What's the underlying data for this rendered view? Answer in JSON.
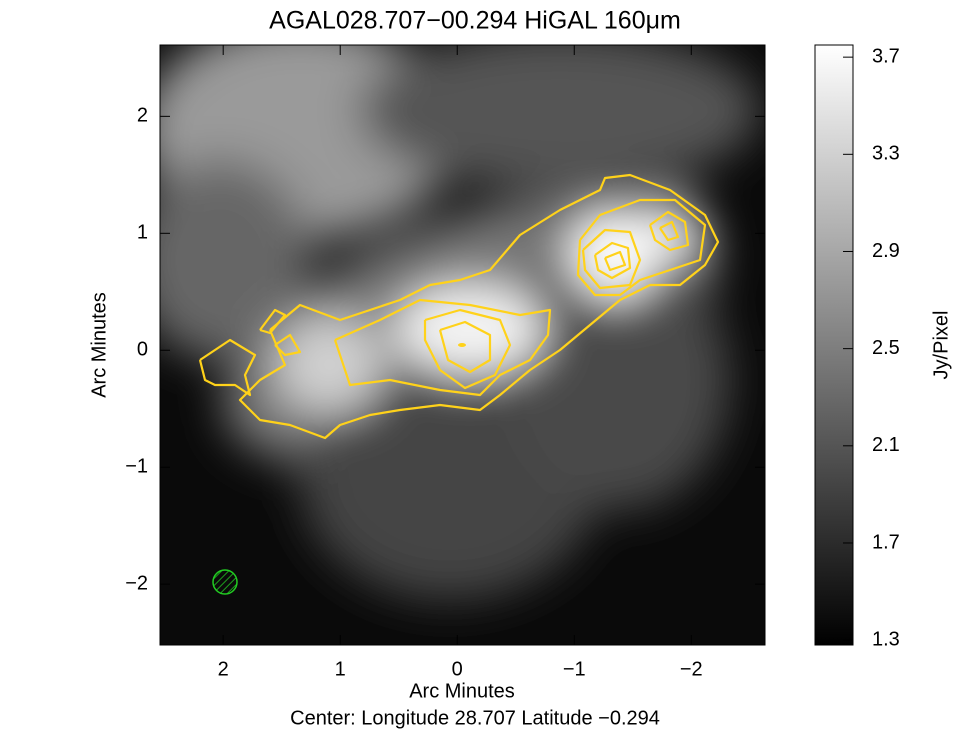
{
  "chart_data": {
    "type": "image",
    "title": "AGAL028.707−00.294 HiGAL 160μm",
    "subtitle": "Center:  Longitude 28.707 Latitude −0.294",
    "xlabel": "Arc Minutes",
    "ylabel": "Arc Minutes",
    "colorbar_label": "Jy/Pixel",
    "xlim": [
      2.54,
      -2.63
    ],
    "xticks": [
      2,
      1,
      0,
      {
        "value": -1,
        "label": "−1"
      },
      {
        "value": -2,
        "label": "−2"
      }
    ],
    "ylim": [
      -2.52,
      2.61
    ],
    "yticks": [
      {
        "value": -2,
        "label": "−2"
      },
      {
        "value": -1,
        "label": "−1"
      },
      0,
      1,
      2
    ],
    "clim": [
      1.28,
      3.75
    ],
    "cticks": [
      1.3,
      1.7,
      2.1,
      2.5,
      2.9,
      3.3,
      3.7
    ],
    "colormap": "gray"
  }
}
